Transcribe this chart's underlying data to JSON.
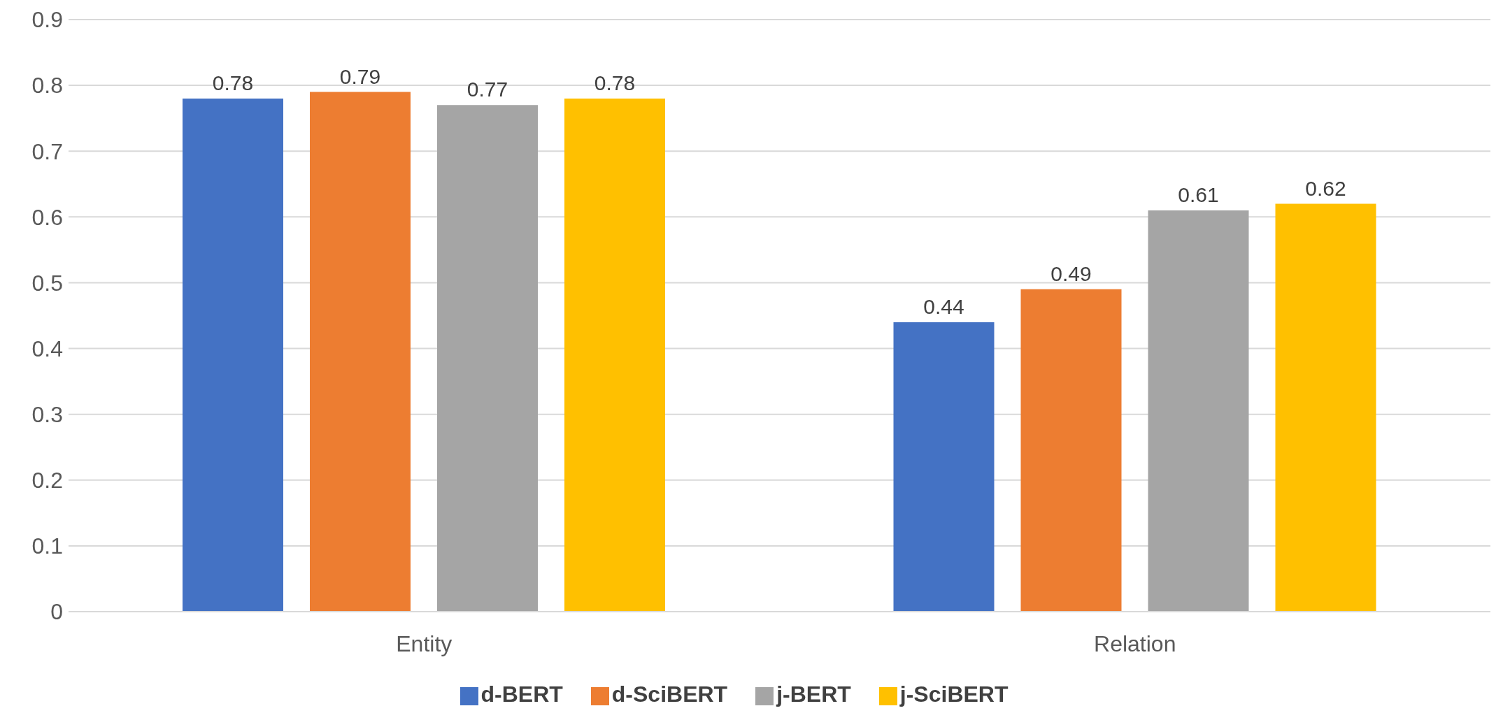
{
  "chart_data": {
    "type": "bar",
    "categories": [
      "Entity",
      "Relation"
    ],
    "series": [
      {
        "name": "d-BERT",
        "color": "#4472c4",
        "values": [
          0.78,
          0.44
        ]
      },
      {
        "name": "d-SciBERT",
        "color": "#ed7d31",
        "values": [
          0.79,
          0.49
        ]
      },
      {
        "name": "j-BERT",
        "color": "#a5a5a5",
        "values": [
          0.77,
          0.61
        ]
      },
      {
        "name": "j-SciBERT",
        "color": "#ffc000",
        "values": [
          0.78,
          0.62
        ]
      }
    ],
    "ylim": [
      0,
      0.9
    ],
    "yticks": [
      0,
      0.1,
      0.2,
      0.3,
      0.4,
      0.5,
      0.6,
      0.7,
      0.8,
      0.9
    ],
    "grid": "y",
    "legend": "bottom",
    "data_labels": true
  }
}
